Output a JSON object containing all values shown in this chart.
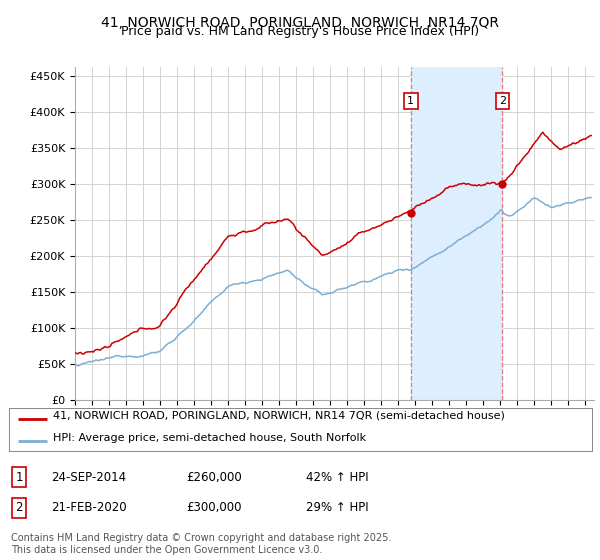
{
  "title": "41, NORWICH ROAD, PORINGLAND, NORWICH, NR14 7QR",
  "subtitle": "Price paid vs. HM Land Registry's House Price Index (HPI)",
  "ylabel_ticks": [
    "£0",
    "£50K",
    "£100K",
    "£150K",
    "£200K",
    "£250K",
    "£300K",
    "£350K",
    "£400K",
    "£450K"
  ],
  "ytick_vals": [
    0,
    50000,
    100000,
    150000,
    200000,
    250000,
    300000,
    350000,
    400000,
    450000
  ],
  "ylim": [
    0,
    462000
  ],
  "xlim_start": 1995.0,
  "xlim_end": 2025.5,
  "background_color": "#ffffff",
  "plot_bg_color": "#ffffff",
  "grid_color": "#cccccc",
  "red_line_color": "#cc0000",
  "blue_line_color": "#7bafd4",
  "sale1_x": 2014.73,
  "sale1_y": 260000,
  "sale1_label": "1",
  "sale2_x": 2020.12,
  "sale2_y": 300000,
  "sale2_label": "2",
  "vspan_color": "#ddeeff",
  "vline_color": "#e87878",
  "legend_line1": "41, NORWICH ROAD, PORINGLAND, NORWICH, NR14 7QR (semi-detached house)",
  "legend_line2": "HPI: Average price, semi-detached house, South Norfolk",
  "table_row1": [
    "1",
    "24-SEP-2014",
    "£260,000",
    "42% ↑ HPI"
  ],
  "table_row2": [
    "2",
    "21-FEB-2020",
    "£300,000",
    "29% ↑ HPI"
  ],
  "footer": "Contains HM Land Registry data © Crown copyright and database right 2025.\nThis data is licensed under the Open Government Licence v3.0.",
  "title_fontsize": 10,
  "subtitle_fontsize": 9,
  "tick_fontsize": 8,
  "legend_fontsize": 8,
  "table_fontsize": 8.5,
  "footer_fontsize": 7
}
